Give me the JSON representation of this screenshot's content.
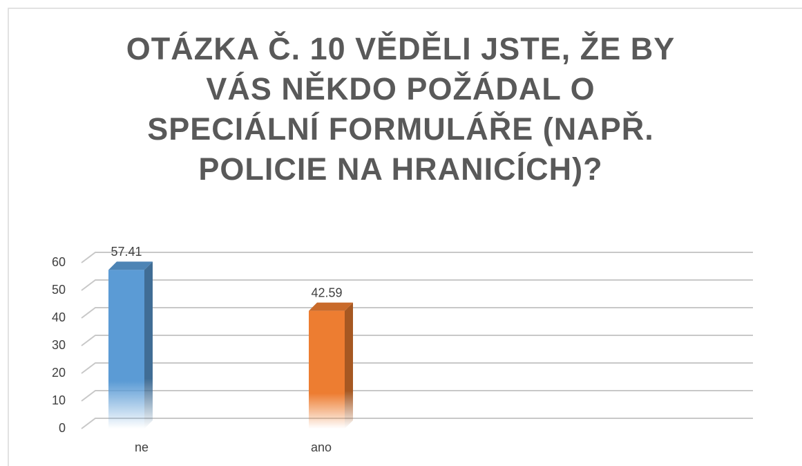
{
  "chart_data": {
    "type": "bar3d",
    "title": "OTÁZKA Č. 10 VĚDĚLI JSTE, ŽE BY VÁS NĚKDO POŽÁDAL O SPECIÁLNÍ FORMULÁŘE (NAPŘ. POLICIE NA HRANICÍCH)?",
    "categories": [
      "ne",
      "ano"
    ],
    "values": [
      57.41,
      42.59
    ],
    "colors": [
      "#5b9bd5",
      "#ed7d31"
    ],
    "ylim": [
      0,
      60
    ],
    "yticks": [
      0,
      10,
      20,
      30,
      40,
      50,
      60
    ],
    "grid": true
  }
}
